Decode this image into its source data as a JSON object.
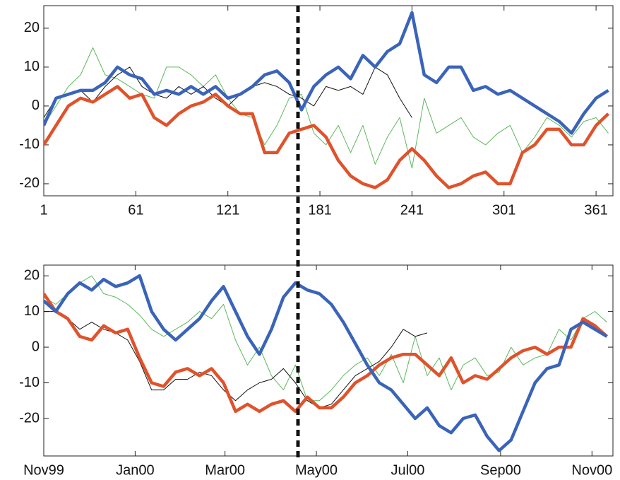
{
  "chart_data": [
    {
      "type": "line",
      "x": [
        1,
        9,
        17,
        25,
        33,
        41,
        49,
        57,
        65,
        73,
        81,
        89,
        97,
        105,
        113,
        121,
        129,
        137,
        145,
        153,
        161,
        169,
        177,
        185,
        193,
        201,
        209,
        217,
        225,
        233,
        241,
        249,
        257,
        265,
        273,
        281,
        289,
        297,
        305,
        313,
        321,
        329,
        337,
        345,
        353,
        361,
        369
      ],
      "series": [
        {
          "color": "#5cb85c",
          "width": 1,
          "values": [
            -5,
            0,
            5,
            8,
            15,
            8,
            7,
            5,
            3,
            2,
            10,
            10,
            8,
            5,
            8,
            2,
            -2,
            -3,
            -10,
            -5,
            2,
            3,
            -7,
            -10,
            -5,
            -12,
            -5,
            -15,
            -8,
            -3,
            -16,
            2,
            -7,
            -5,
            -3,
            -8,
            -10,
            -7,
            -5,
            -12,
            -8,
            -3,
            -5,
            -8,
            -4,
            -3,
            -7
          ]
        },
        {
          "color": "#111111",
          "width": 1,
          "values": [
            -3,
            2,
            3,
            4,
            1,
            5,
            8,
            10,
            5,
            3,
            2,
            5,
            3,
            5,
            2,
            0,
            3,
            5,
            6,
            5,
            3,
            2,
            0,
            5,
            4,
            5,
            3,
            10,
            8,
            2,
            -3,
            null,
            null,
            null,
            null,
            null,
            null,
            null,
            null,
            null,
            null,
            null,
            null,
            null,
            null,
            null,
            null
          ]
        },
        {
          "color": "#e0522b",
          "width": 4.5,
          "values": [
            -10,
            -5,
            0,
            2,
            1,
            3,
            5,
            2,
            3,
            -3,
            -5,
            -2,
            0,
            1,
            3,
            0,
            -2,
            -2,
            -12,
            -12,
            -7,
            -6,
            -5,
            -8,
            -14,
            -18,
            -20,
            -21,
            -19,
            -14,
            -11,
            -14,
            -18,
            -21,
            -20,
            -18,
            -17,
            -20,
            -20,
            -12,
            -10,
            -6,
            -6,
            -10,
            -10,
            -5,
            -2
          ]
        },
        {
          "color": "#3a64b9",
          "width": 4.5,
          "values": [
            -5,
            2,
            3,
            4,
            4,
            6,
            10,
            8,
            7,
            3,
            4,
            3,
            5,
            3,
            5,
            2,
            3,
            5,
            8,
            9,
            6,
            -1,
            5,
            8,
            10,
            7,
            13,
            10,
            14,
            16,
            24,
            8,
            6,
            10,
            10,
            4,
            5,
            3,
            4,
            2,
            0,
            -2,
            -4,
            -7,
            -2,
            2,
            4
          ]
        }
      ],
      "xlim": [
        1,
        372
      ],
      "ylim": [
        -23.1,
        25.8
      ],
      "xticks": [
        1,
        61,
        121,
        181,
        241,
        301,
        361
      ],
      "yticks": [
        -20,
        -10,
        0,
        10,
        20
      ]
    },
    {
      "type": "line",
      "x": [
        0,
        8,
        16,
        24,
        32,
        40,
        48,
        56,
        64,
        72,
        80,
        88,
        96,
        104,
        112,
        120,
        128,
        136,
        144,
        152,
        160,
        168,
        176,
        184,
        192,
        200,
        208,
        216,
        224,
        232,
        240,
        248,
        256,
        264,
        272,
        280,
        288,
        296,
        304,
        312,
        320,
        328,
        336,
        344,
        352,
        360,
        368,
        376
      ],
      "series": [
        {
          "color": "#5cb85c",
          "width": 1,
          "values": [
            14,
            12,
            15,
            18,
            20,
            15,
            14,
            12,
            9,
            5,
            3,
            5,
            7,
            10,
            8,
            12,
            2,
            -5,
            0,
            -8,
            -12,
            -5,
            -15,
            -15,
            -12,
            -8,
            -5,
            -3,
            -8,
            -2,
            -10,
            3,
            -8,
            -3,
            -12,
            -5,
            -3,
            -8,
            -7,
            0,
            -5,
            -3,
            -2,
            5,
            2,
            8,
            10,
            7
          ]
        },
        {
          "color": "#111111",
          "width": 1,
          "values": [
            10,
            10,
            8,
            5,
            7,
            5,
            4,
            2,
            -4,
            -12,
            -12,
            -9,
            -9,
            -7,
            -8,
            -12,
            -15,
            -12,
            -10,
            -9,
            -6,
            -10,
            -15,
            -17,
            -16,
            -12,
            -8,
            -6,
            -4,
            0,
            5,
            3,
            4,
            null,
            null,
            null,
            null,
            null,
            null,
            null,
            null,
            null,
            null,
            null,
            null,
            null,
            null,
            null
          ]
        },
        {
          "color": "#e0522b",
          "width": 4.5,
          "values": [
            15,
            10,
            8,
            3,
            2,
            6,
            4,
            5,
            -3,
            -10,
            -11,
            -7,
            -6,
            -8,
            -6,
            -10,
            -18,
            -16,
            -18,
            -16,
            -15,
            -18,
            -14,
            -17,
            -17,
            -14,
            -10,
            -8,
            -5,
            -3,
            -2,
            -2,
            -5,
            -8,
            -3,
            -10,
            -8,
            -9,
            -6,
            -3,
            -1,
            0,
            -2,
            0,
            0,
            8,
            6,
            3
          ]
        },
        {
          "color": "#3a64b9",
          "width": 4.5,
          "values": [
            13,
            10,
            15,
            18,
            16,
            19,
            17,
            18,
            20,
            10,
            5,
            2,
            5,
            8,
            13,
            17,
            10,
            3,
            -2,
            5,
            14,
            18,
            16,
            15,
            12,
            7,
            1,
            -5,
            -10,
            -12,
            -16,
            -20,
            -17,
            -22,
            -24,
            -20,
            -19,
            -25,
            -29,
            -26,
            -18,
            -10,
            -6,
            -5,
            5,
            7,
            5,
            3
          ]
        }
      ],
      "xlim": [
        0,
        380
      ],
      "ylim": [
        -30.5,
        23
      ],
      "xticks": [
        {
          "value": 0,
          "label": "Nov99"
        },
        {
          "value": 61,
          "label": "Jan00"
        },
        {
          "value": 121,
          "label": "Mar00"
        },
        {
          "value": 182,
          "label": "May00"
        },
        {
          "value": 243,
          "label": "Jul00"
        },
        {
          "value": 305,
          "label": "Sep00"
        },
        {
          "value": 366,
          "label": "Nov00"
        }
      ],
      "yticks": [
        -20,
        -10,
        0,
        10,
        20
      ]
    }
  ]
}
